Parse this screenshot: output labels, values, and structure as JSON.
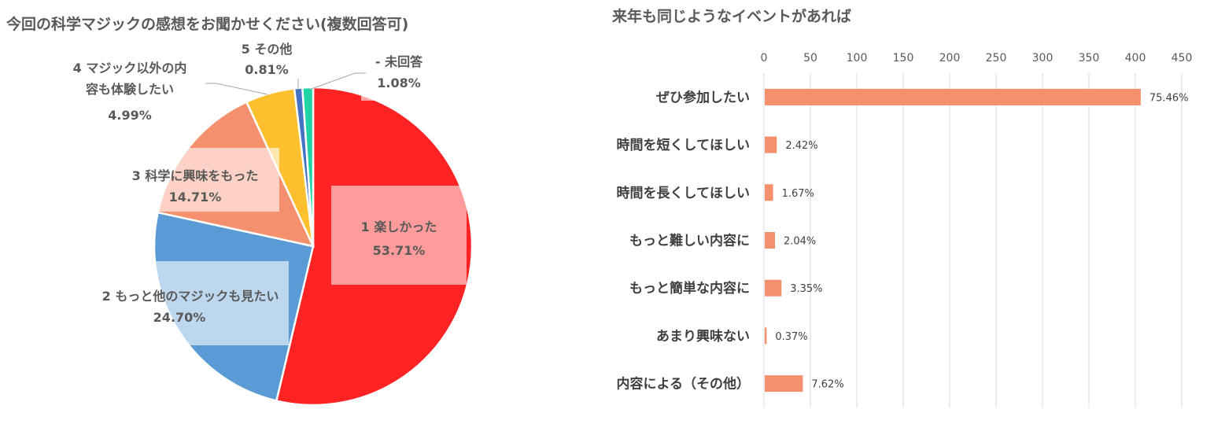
{
  "chart_data": [
    {
      "type": "pie",
      "title": "今回の科学マジックの感想をお聞かせください(複数回答可)",
      "slices": [
        {
          "name": "1 楽しかった",
          "value": 53.71,
          "label": "53.71%",
          "color": "#FF2323"
        },
        {
          "name": "2 もっと他のマジックも見たい",
          "value": 24.7,
          "label": "24.70%",
          "color": "#5B9BD5"
        },
        {
          "name": "3 科学に興味をもった",
          "value": 14.71,
          "label": "14.71%",
          "color": "#F4906E"
        },
        {
          "name": "4 マジック以外の内容も体験したい",
          "value": 4.99,
          "label": "4.99%",
          "color": "#FFC030"
        },
        {
          "name": "5 その他",
          "value": 0.81,
          "label": "0.81%",
          "color": "#4472C4"
        },
        {
          "name": "- 未回答",
          "value": 1.08,
          "label": "1.08%",
          "color": "#1ED3A4"
        }
      ]
    },
    {
      "type": "bar",
      "orientation": "horizontal",
      "title": "来年も同じようなイベントがあれば",
      "xlim": [
        0,
        450
      ],
      "xticks": [
        "0",
        "50",
        "100",
        "150",
        "200",
        "250",
        "300",
        "350",
        "400",
        "450"
      ],
      "grid": true,
      "color": "#F4906E",
      "categories": [
        "ぜひ参加したい",
        "時間を短くしてほしい",
        "時間を長くしてほしい",
        "もっと難しい内容に",
        "もっと簡単な内容に",
        "あまり興味ない",
        "内容による（その他）"
      ],
      "values": [
        405,
        13,
        9,
        11,
        18,
        2,
        41
      ],
      "labels": [
        "75.46%",
        "2.42%",
        "1.67%",
        "2.04%",
        "3.35%",
        "0.37%",
        "7.62%"
      ]
    }
  ]
}
